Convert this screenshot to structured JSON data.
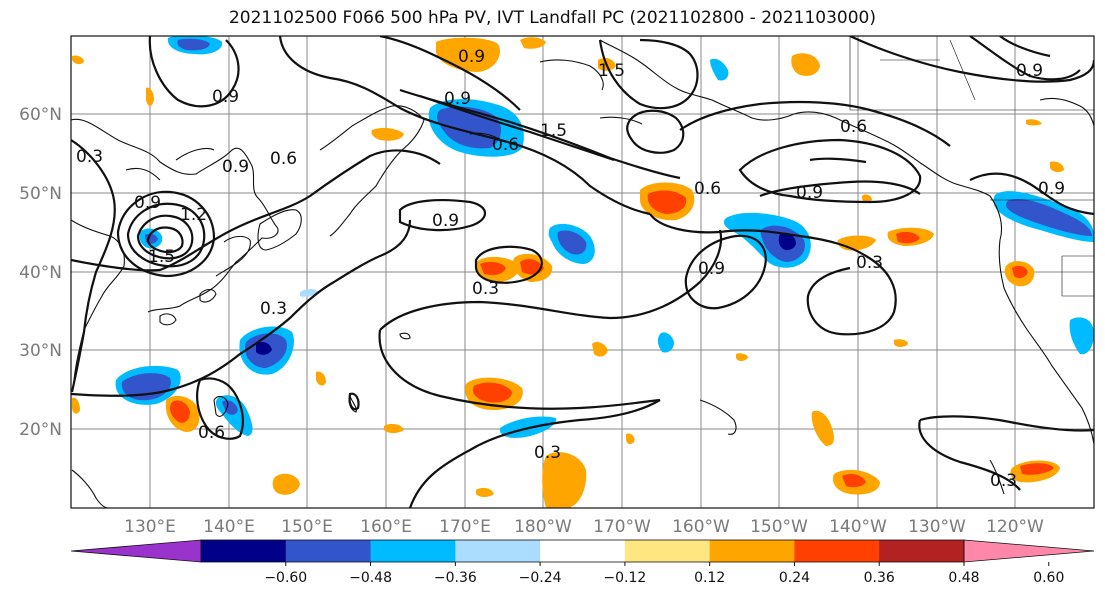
{
  "title": "2021102500 F066 500 hPa PV, IVT Landfall PC (2021102800 - 2021103000)",
  "lat_labels": [
    "60°N",
    "50°N",
    "40°N",
    "30°N",
    "20°N"
  ],
  "lon_labels": [
    "130°E",
    "140°E",
    "150°E",
    "160°E",
    "170°E",
    "180°W",
    "170°W",
    "160°W",
    "150°W",
    "140°W",
    "130°W",
    "120°W"
  ],
  "colorbar": {
    "colors": [
      "#9933cc",
      "#000088",
      "#3355cc",
      "#00bbff",
      "#aaddff",
      "#ffffff",
      "#ffe680",
      "#ffa500",
      "#ff4000",
      "#b22222",
      "#ff88aa"
    ],
    "tick_labels": [
      "−0.60",
      "−0.48",
      "−0.36",
      "−0.24",
      "−0.12",
      "0.12",
      "0.24",
      "0.36",
      "0.48",
      "0.60"
    ]
  },
  "contour_labels": [
    "0.9",
    "0.9",
    "0.6",
    "0.9",
    "0.6",
    "1.5",
    "1.5",
    "0.6",
    "0.6",
    "0.9",
    "0.9",
    "0.9",
    "1.2",
    "1.5",
    "0.3",
    "0.9",
    "0.3",
    "0.9",
    "0.3",
    "0.3",
    "0.6",
    "0.3",
    "0.3",
    "0.9",
    "0.9"
  ]
}
